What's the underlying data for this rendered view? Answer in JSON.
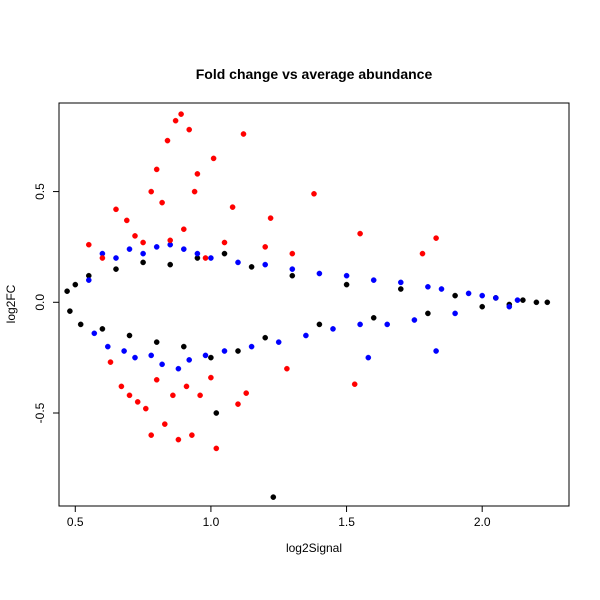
{
  "chart_data": {
    "type": "scatter",
    "title": "Fold change vs average abundance",
    "xlabel": "log2Signal",
    "ylabel": "log2FC",
    "xlim": [
      0.44,
      2.32
    ],
    "ylim": [
      -0.92,
      0.9
    ],
    "xticks": [
      {
        "value": 0.5,
        "label": "0.5"
      },
      {
        "value": 1.0,
        "label": "1.0"
      },
      {
        "value": 1.5,
        "label": "1.5"
      },
      {
        "value": 2.0,
        "label": "2.0"
      }
    ],
    "yticks": [
      {
        "value": -0.5,
        "label": "-0.5"
      },
      {
        "value": 0.0,
        "label": "0.0"
      },
      {
        "value": 0.5,
        "label": "0.5"
      }
    ],
    "grid": false,
    "legend": "none",
    "colors": {
      "not_significant": "#000000",
      "significant": "#0000ff",
      "large_change": "#ff0000"
    },
    "series": [
      {
        "color_key": "not_significant",
        "points": [
          [
            0.47,
            0.05
          ],
          [
            0.48,
            -0.04
          ],
          [
            0.5,
            0.08
          ],
          [
            0.52,
            -0.1
          ],
          [
            0.55,
            0.12
          ],
          [
            0.6,
            -0.12
          ],
          [
            0.65,
            0.15
          ],
          [
            0.7,
            -0.15
          ],
          [
            0.75,
            0.18
          ],
          [
            0.8,
            -0.18
          ],
          [
            0.85,
            0.17
          ],
          [
            0.9,
            -0.2
          ],
          [
            0.95,
            0.2
          ],
          [
            1.0,
            -0.25
          ],
          [
            1.02,
            -0.5
          ],
          [
            1.05,
            0.22
          ],
          [
            1.1,
            -0.22
          ],
          [
            1.15,
            0.16
          ],
          [
            1.2,
            -0.16
          ],
          [
            1.23,
            -0.88
          ],
          [
            1.3,
            0.12
          ],
          [
            1.4,
            -0.1
          ],
          [
            1.5,
            0.08
          ],
          [
            1.6,
            -0.07
          ],
          [
            1.7,
            0.06
          ],
          [
            1.8,
            -0.05
          ],
          [
            1.9,
            0.03
          ],
          [
            2.0,
            -0.02
          ],
          [
            2.05,
            0.02
          ],
          [
            2.1,
            -0.01
          ],
          [
            2.15,
            0.01
          ],
          [
            2.2,
            0.0
          ],
          [
            2.24,
            0.0
          ]
        ]
      },
      {
        "color_key": "significant",
        "points": [
          [
            0.55,
            0.1
          ],
          [
            0.57,
            -0.14
          ],
          [
            0.6,
            0.22
          ],
          [
            0.62,
            -0.2
          ],
          [
            0.65,
            0.2
          ],
          [
            0.68,
            -0.22
          ],
          [
            0.7,
            0.24
          ],
          [
            0.72,
            -0.25
          ],
          [
            0.75,
            0.22
          ],
          [
            0.78,
            -0.24
          ],
          [
            0.8,
            0.25
          ],
          [
            0.82,
            -0.28
          ],
          [
            0.85,
            0.26
          ],
          [
            0.88,
            -0.3
          ],
          [
            0.9,
            0.24
          ],
          [
            0.92,
            -0.26
          ],
          [
            0.95,
            0.22
          ],
          [
            0.98,
            -0.24
          ],
          [
            1.0,
            0.2
          ],
          [
            1.05,
            -0.22
          ],
          [
            1.1,
            0.18
          ],
          [
            1.15,
            -0.2
          ],
          [
            1.2,
            0.17
          ],
          [
            1.25,
            -0.18
          ],
          [
            1.3,
            0.15
          ],
          [
            1.35,
            -0.15
          ],
          [
            1.4,
            0.13
          ],
          [
            1.45,
            -0.12
          ],
          [
            1.5,
            0.12
          ],
          [
            1.55,
            -0.1
          ],
          [
            1.58,
            -0.25
          ],
          [
            1.6,
            0.1
          ],
          [
            1.65,
            -0.1
          ],
          [
            1.7,
            0.09
          ],
          [
            1.75,
            -0.08
          ],
          [
            1.8,
            0.07
          ],
          [
            1.83,
            -0.22
          ],
          [
            1.85,
            0.06
          ],
          [
            1.9,
            -0.05
          ],
          [
            1.95,
            0.04
          ],
          [
            2.0,
            0.03
          ],
          [
            2.05,
            0.02
          ],
          [
            2.1,
            -0.02
          ],
          [
            2.13,
            0.01
          ]
        ]
      },
      {
        "color_key": "large_change",
        "points": [
          [
            0.55,
            0.26
          ],
          [
            0.6,
            0.2
          ],
          [
            0.63,
            -0.27
          ],
          [
            0.65,
            0.42
          ],
          [
            0.67,
            -0.38
          ],
          [
            0.69,
            0.37
          ],
          [
            0.7,
            -0.42
          ],
          [
            0.72,
            0.3
          ],
          [
            0.73,
            -0.45
          ],
          [
            0.75,
            0.27
          ],
          [
            0.76,
            -0.48
          ],
          [
            0.78,
            -0.6
          ],
          [
            0.78,
            0.5
          ],
          [
            0.8,
            0.6
          ],
          [
            0.8,
            -0.35
          ],
          [
            0.82,
            0.45
          ],
          [
            0.83,
            -0.55
          ],
          [
            0.84,
            0.73
          ],
          [
            0.85,
            0.28
          ],
          [
            0.86,
            -0.42
          ],
          [
            0.87,
            0.82
          ],
          [
            0.88,
            -0.62
          ],
          [
            0.89,
            0.85
          ],
          [
            0.9,
            0.33
          ],
          [
            0.91,
            -0.38
          ],
          [
            0.92,
            0.78
          ],
          [
            0.93,
            -0.6
          ],
          [
            0.94,
            0.5
          ],
          [
            0.95,
            0.58
          ],
          [
            0.96,
            -0.42
          ],
          [
            0.98,
            0.2
          ],
          [
            1.0,
            -0.34
          ],
          [
            1.01,
            0.65
          ],
          [
            1.02,
            -0.66
          ],
          [
            1.05,
            0.27
          ],
          [
            1.08,
            0.43
          ],
          [
            1.1,
            -0.46
          ],
          [
            1.12,
            0.76
          ],
          [
            1.13,
            -0.41
          ],
          [
            1.2,
            0.25
          ],
          [
            1.22,
            0.38
          ],
          [
            1.28,
            -0.3
          ],
          [
            1.3,
            0.22
          ],
          [
            1.38,
            0.49
          ],
          [
            1.53,
            -0.37
          ],
          [
            1.55,
            0.31
          ],
          [
            1.78,
            0.22
          ],
          [
            1.83,
            0.29
          ]
        ]
      }
    ]
  }
}
